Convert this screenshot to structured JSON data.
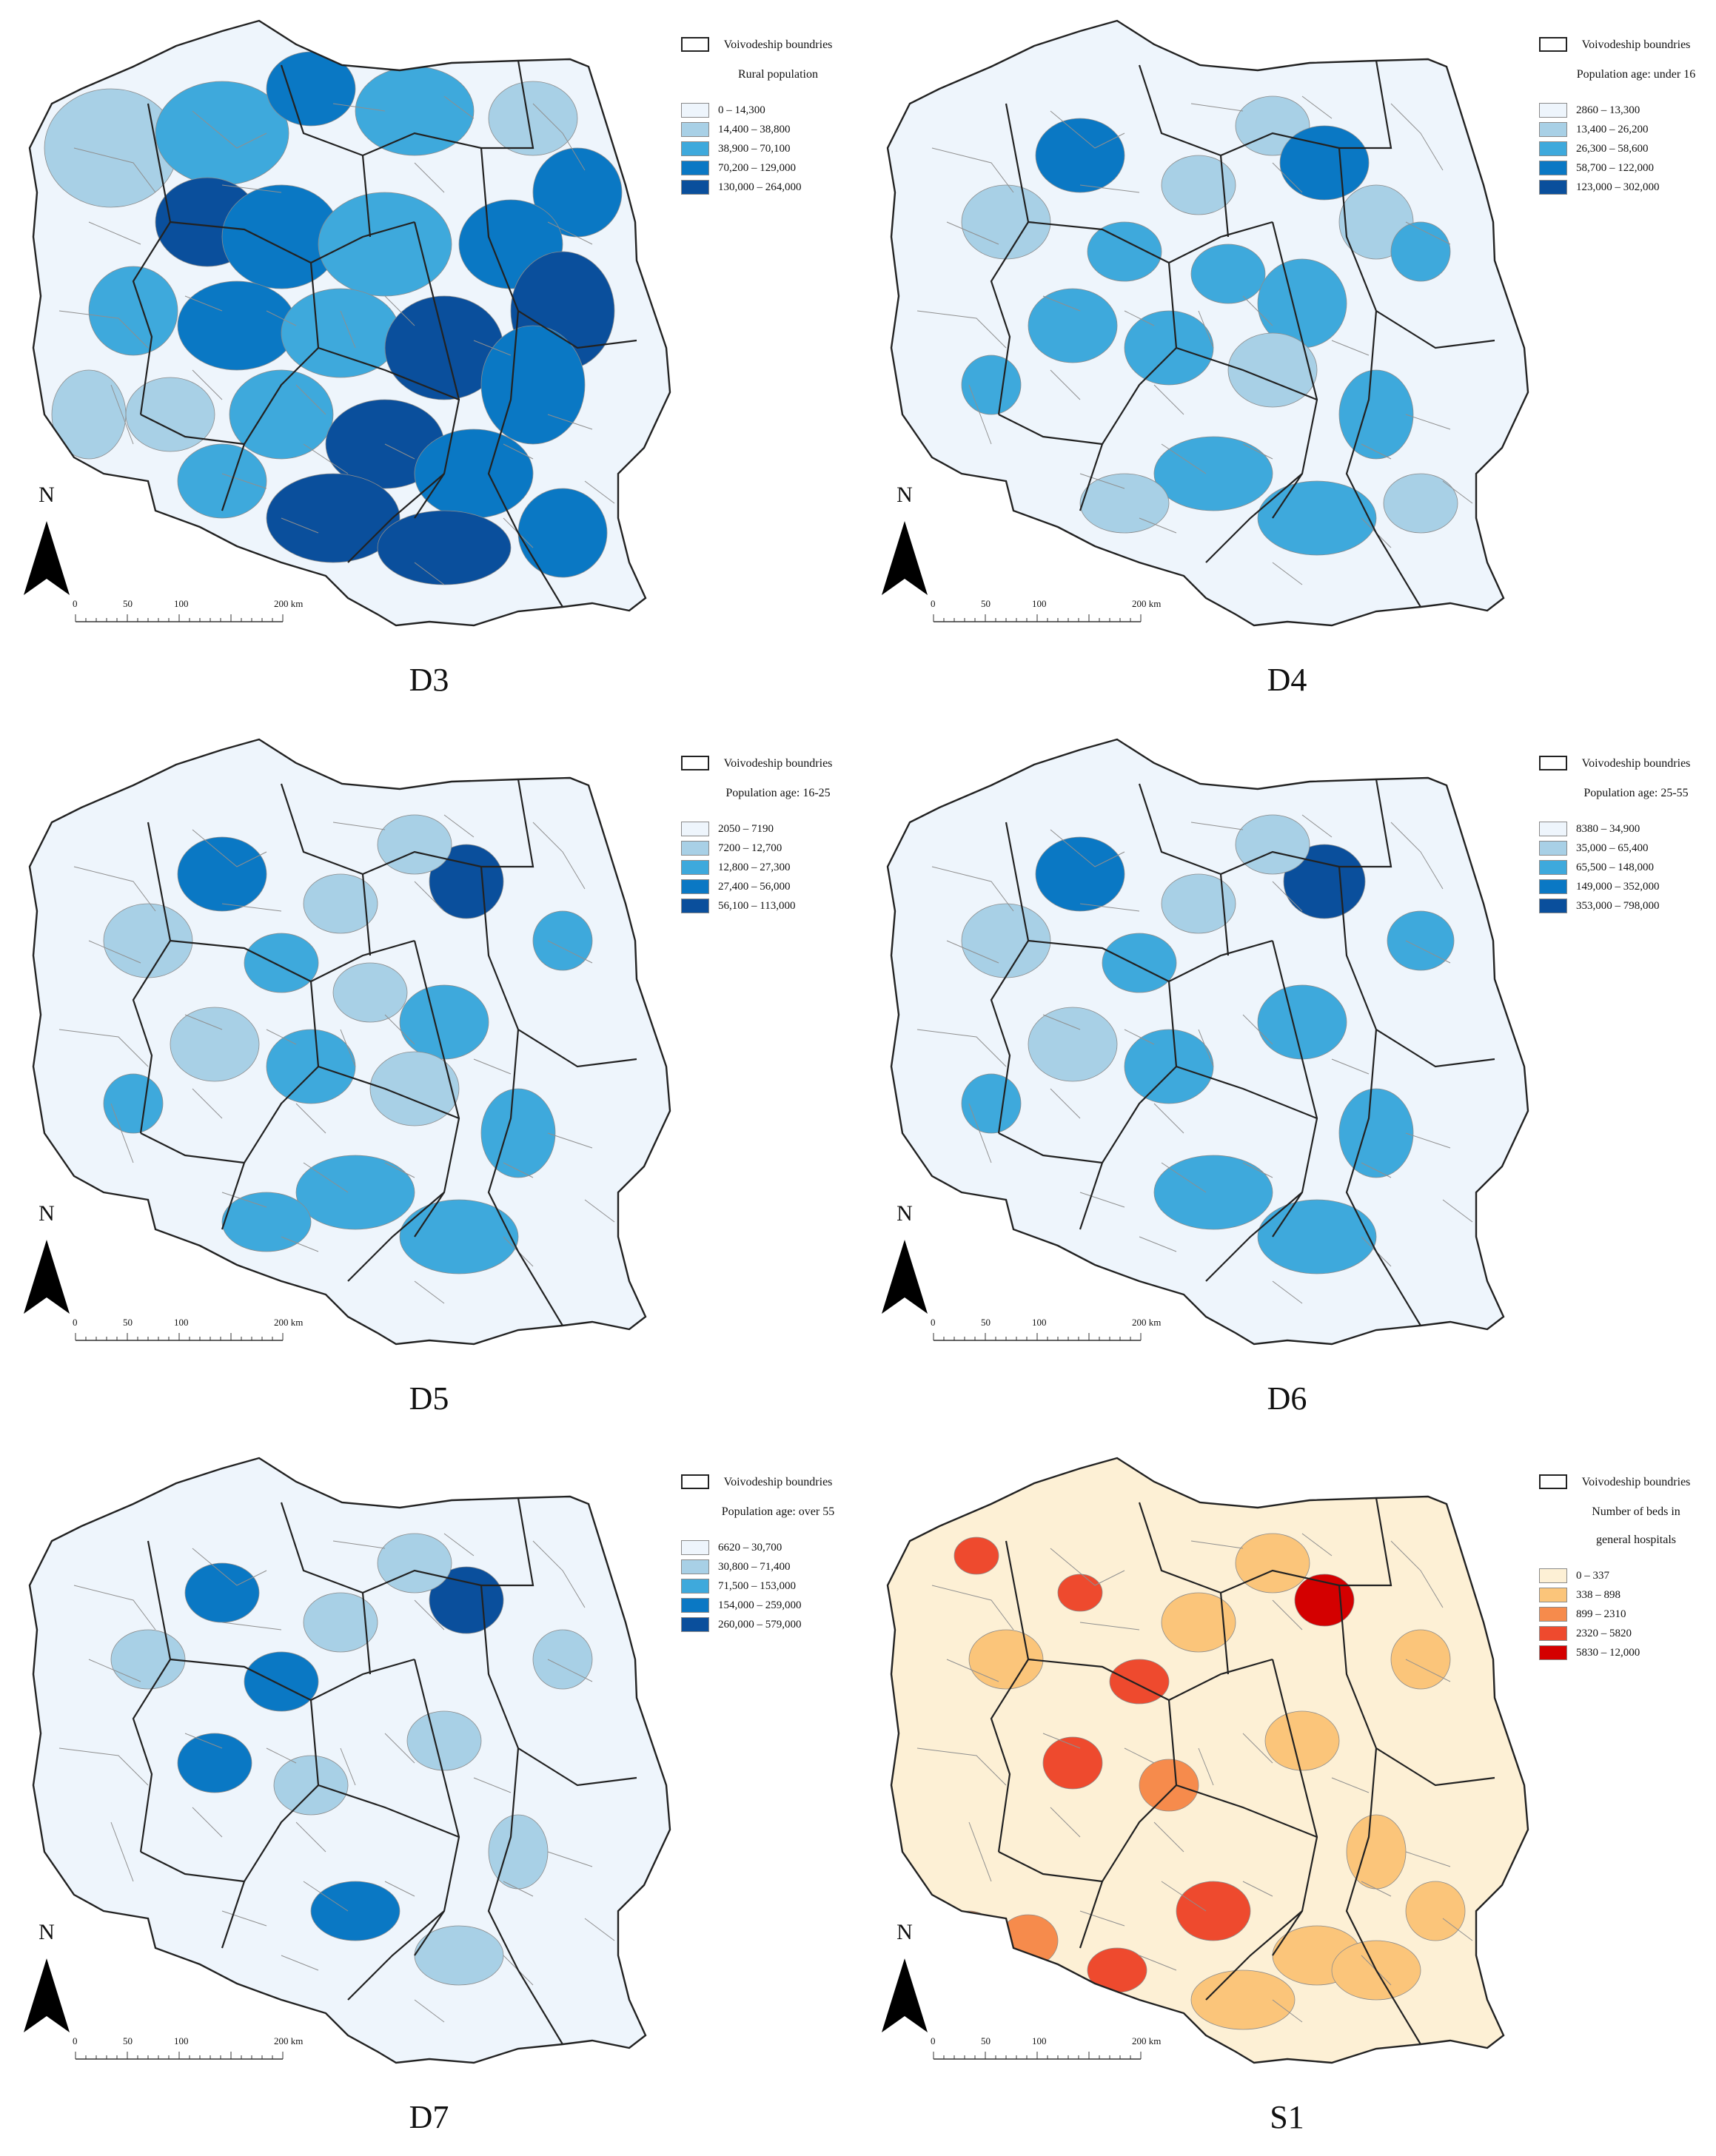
{
  "voivodeship_label": "Voivodeship boundries",
  "north_label": "N",
  "scale": {
    "ticks": [
      "0",
      "50",
      "100",
      "200 km"
    ]
  },
  "panels": [
    {
      "id": "D3",
      "label": "D3",
      "legend_title": "Rural population",
      "palette": "blue",
      "classes": [
        {
          "label": "0 – 14,300",
          "color": "#eef5fc"
        },
        {
          "label": "14,400 – 38,800",
          "color": "#a8d0e6"
        },
        {
          "label": "38,900 – 70,100",
          "color": "#3ea9dc"
        },
        {
          "label": "70,200 – 129,000",
          "color": "#0a78c4"
        },
        {
          "label": "130,000 – 264,000",
          "color": "#0a4f9c"
        }
      ]
    },
    {
      "id": "D4",
      "label": "D4",
      "legend_title": "Population age: under 16",
      "palette": "blue",
      "classes": [
        {
          "label": "2860 – 13,300",
          "color": "#eef5fc"
        },
        {
          "label": "13,400 – 26,200",
          "color": "#a8d0e6"
        },
        {
          "label": "26,300 – 58,600",
          "color": "#3ea9dc"
        },
        {
          "label": "58,700 – 122,000",
          "color": "#0a78c4"
        },
        {
          "label": "123,000 – 302,000",
          "color": "#0a4f9c"
        }
      ]
    },
    {
      "id": "D5",
      "label": "D5",
      "legend_title": "Population age: 16-25",
      "palette": "blue",
      "classes": [
        {
          "label": "2050 – 7190",
          "color": "#eef5fc"
        },
        {
          "label": "7200 – 12,700",
          "color": "#a8d0e6"
        },
        {
          "label": "12,800 – 27,300",
          "color": "#3ea9dc"
        },
        {
          "label": "27,400 – 56,000",
          "color": "#0a78c4"
        },
        {
          "label": "56,100 – 113,000",
          "color": "#0a4f9c"
        }
      ]
    },
    {
      "id": "D6",
      "label": "D6",
      "legend_title": "Population age: 25-55",
      "palette": "blue",
      "classes": [
        {
          "label": "8380 – 34,900",
          "color": "#eef5fc"
        },
        {
          "label": "35,000 – 65,400",
          "color": "#a8d0e6"
        },
        {
          "label": "65,500 – 148,000",
          "color": "#3ea9dc"
        },
        {
          "label": "149,000 – 352,000",
          "color": "#0a78c4"
        },
        {
          "label": "353,000 – 798,000",
          "color": "#0a4f9c"
        }
      ]
    },
    {
      "id": "D7",
      "label": "D7",
      "legend_title": "Population age: over 55",
      "palette": "blue",
      "classes": [
        {
          "label": "6620 – 30,700",
          "color": "#eef5fc"
        },
        {
          "label": "30,800 – 71,400",
          "color": "#a8d0e6"
        },
        {
          "label": "71,500 – 153,000",
          "color": "#3ea9dc"
        },
        {
          "label": "154,000 – 259,000",
          "color": "#0a78c4"
        },
        {
          "label": "260,000 – 579,000",
          "color": "#0a4f9c"
        }
      ]
    },
    {
      "id": "S1",
      "label": "S1",
      "legend_title": "Number of beds in general hospitals",
      "palette": "orange",
      "classes": [
        {
          "label": "0 – 337",
          "color": "#fdf0d5"
        },
        {
          "label": "338 – 898",
          "color": "#fbc57a"
        },
        {
          "label": "899 – 2310",
          "color": "#f68b4c"
        },
        {
          "label": "2320 – 5820",
          "color": "#ee4a2e"
        },
        {
          "label": "5830 – 12,000",
          "color": "#d40000"
        }
      ]
    }
  ]
}
